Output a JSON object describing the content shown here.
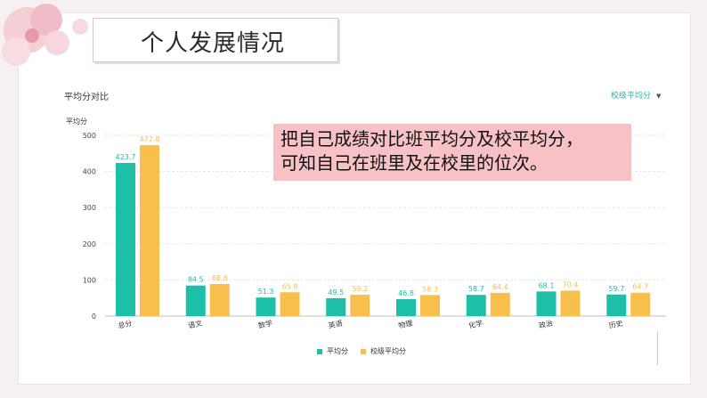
{
  "slide": {
    "title": "个人发展情况",
    "callout_line1": "把自己成绩对比班平均分及校平均分，",
    "callout_line2": "可知自己在班里及在校里的位次。"
  },
  "dropdown": {
    "label": "校级平均分"
  },
  "colors": {
    "series1": "#1dbfa6",
    "series2": "#f8bf4c",
    "callout_bg": "#f7c1c6"
  },
  "chart_data": {
    "type": "bar",
    "title": "平均分对比",
    "ylabel": "平均分",
    "ylim": [
      0,
      500
    ],
    "yticks": [
      0,
      100,
      200,
      300,
      400,
      500
    ],
    "categories": [
      "总分",
      "语文",
      "数学",
      "英语",
      "物理",
      "化学",
      "政治",
      "历史"
    ],
    "series": [
      {
        "name": "平均分",
        "values": [
          423.7,
          84.5,
          51.3,
          49.5,
          46.8,
          58.7,
          68.1,
          59.7
        ],
        "labels": [
          "423.7",
          "84.5",
          "51.3",
          "49.5",
          "46.8",
          "58.7",
          "68.1",
          "59.7"
        ]
      },
      {
        "name": "校级平均分",
        "values": [
          472.8,
          88.8,
          65.8,
          59.2,
          58.3,
          64.4,
          70.4,
          64.7
        ],
        "labels": [
          "472.8",
          "88.8",
          "65.8",
          "59.2",
          "58.3",
          "64.4",
          "70.4",
          "64.7"
        ]
      }
    ],
    "grid": true,
    "legend": "bottom"
  }
}
